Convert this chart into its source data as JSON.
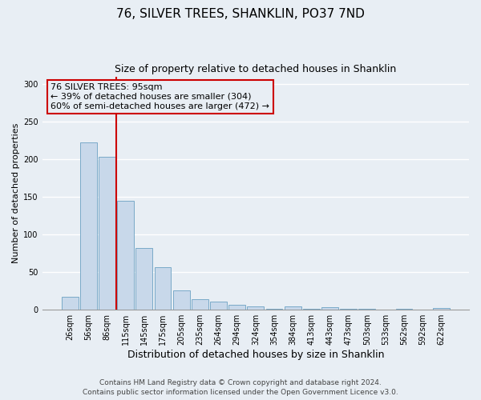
{
  "title": "76, SILVER TREES, SHANKLIN, PO37 7ND",
  "subtitle": "Size of property relative to detached houses in Shanklin",
  "xlabel": "Distribution of detached houses by size in Shanklin",
  "ylabel": "Number of detached properties",
  "bin_labels": [
    "26sqm",
    "56sqm",
    "86sqm",
    "115sqm",
    "145sqm",
    "175sqm",
    "205sqm",
    "235sqm",
    "264sqm",
    "294sqm",
    "324sqm",
    "354sqm",
    "384sqm",
    "413sqm",
    "443sqm",
    "473sqm",
    "503sqm",
    "533sqm",
    "562sqm",
    "592sqm",
    "622sqm"
  ],
  "bar_heights": [
    17,
    222,
    203,
    145,
    82,
    57,
    26,
    14,
    11,
    7,
    4,
    1,
    4,
    1,
    3,
    1,
    1,
    0,
    1,
    0,
    2
  ],
  "bar_color": "#c8d8ea",
  "bar_edge_color": "#7aaac8",
  "vline_color": "#cc0000",
  "ylim": [
    0,
    310
  ],
  "yticks": [
    0,
    50,
    100,
    150,
    200,
    250,
    300
  ],
  "annotation_title": "76 SILVER TREES: 95sqm",
  "annotation_line1": "← 39% of detached houses are smaller (304)",
  "annotation_line2": "60% of semi-detached houses are larger (472) →",
  "annotation_box_color": "#cc0000",
  "footer_line1": "Contains HM Land Registry data © Crown copyright and database right 2024.",
  "footer_line2": "Contains public sector information licensed under the Open Government Licence v3.0.",
  "background_color": "#e8eef4",
  "grid_color": "#ffffff",
  "title_fontsize": 11,
  "subtitle_fontsize": 9,
  "xlabel_fontsize": 9,
  "ylabel_fontsize": 8,
  "tick_fontsize": 7,
  "annotation_fontsize": 8,
  "footer_fontsize": 6.5
}
